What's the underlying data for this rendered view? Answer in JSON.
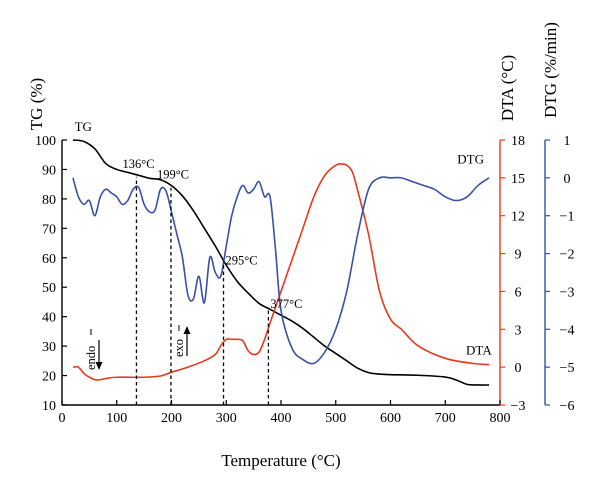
{
  "chart_data": {
    "type": "line",
    "xlabel": "Temperature (°C)",
    "xlim": [
      0,
      800
    ],
    "xticks": [
      0,
      100,
      200,
      300,
      400,
      500,
      600,
      700,
      800
    ],
    "axes": {
      "tg": {
        "label": "TG (%)",
        "range": [
          10,
          100
        ],
        "ticks": [
          10,
          20,
          30,
          40,
          50,
          60,
          70,
          80,
          90,
          100
        ],
        "color": "#000000"
      },
      "dta": {
        "label": "DTA (°C)",
        "range": [
          -3,
          18
        ],
        "ticks": [
          -3,
          0,
          3,
          6,
          9,
          12,
          15,
          18
        ],
        "color": "#e8391f"
      },
      "dtg": {
        "label": "DTG (%/min)",
        "range": [
          -6,
          1
        ],
        "ticks": [
          -6,
          -5,
          -4,
          -3,
          -2,
          -1,
          0,
          1
        ],
        "color": "#3a4fa8"
      }
    },
    "series": [
      {
        "name": "TG",
        "axis": "tg",
        "color": "#000000",
        "x": [
          20,
          40,
          60,
          80,
          100,
          120,
          140,
          160,
          180,
          200,
          220,
          240,
          260,
          280,
          300,
          320,
          340,
          360,
          380,
          400,
          420,
          440,
          460,
          480,
          500,
          520,
          540,
          560,
          580,
          600,
          650,
          700,
          720,
          740,
          760,
          780
        ],
        "y": [
          100,
          99.5,
          97,
          92,
          90,
          89,
          88,
          87,
          86.5,
          84.5,
          81,
          76,
          70,
          64,
          57.5,
          52,
          48,
          44.5,
          42.5,
          40.5,
          38.5,
          36,
          33,
          30,
          27.5,
          25,
          22.5,
          21,
          20.5,
          20.3,
          20.1,
          19.5,
          18.5,
          17,
          16.8,
          16.8
        ]
      },
      {
        "name": "DTA",
        "axis": "dta",
        "color": "#e8391f",
        "x": [
          20,
          30,
          40,
          50,
          60,
          70,
          80,
          100,
          150,
          180,
          200,
          230,
          260,
          280,
          290,
          300,
          310,
          320,
          330,
          340,
          350,
          360,
          370,
          380,
          400,
          420,
          440,
          460,
          480,
          500,
          510,
          520,
          530,
          540,
          560,
          580,
          600,
          620,
          650,
          700,
          750,
          780
        ],
        "y": [
          0,
          0,
          -0.5,
          -0.8,
          -1,
          -1,
          -0.9,
          -0.8,
          -0.8,
          -0.7,
          -0.4,
          0,
          0.5,
          1,
          1.7,
          2.2,
          2.2,
          2.2,
          2.1,
          1.3,
          1,
          1.2,
          2.2,
          3.5,
          6,
          8.5,
          11,
          13.5,
          15.2,
          16,
          16.1,
          16,
          15.5,
          14,
          10.5,
          6,
          3.8,
          3,
          1.7,
          0.7,
          0.3,
          0.2
        ]
      },
      {
        "name": "DTG",
        "axis": "dtg",
        "color": "#3a4fa8",
        "x": [
          20,
          30,
          40,
          50,
          60,
          70,
          80,
          90,
          100,
          110,
          120,
          130,
          140,
          150,
          160,
          170,
          180,
          190,
          200,
          210,
          220,
          230,
          240,
          250,
          260,
          270,
          280,
          290,
          300,
          310,
          320,
          330,
          340,
          350,
          360,
          370,
          380,
          390,
          400,
          420,
          440,
          460,
          480,
          500,
          520,
          540,
          560,
          580,
          600,
          620,
          640,
          660,
          680,
          700,
          720,
          740,
          760,
          780
        ],
        "y": [
          0,
          -0.5,
          -0.7,
          -0.6,
          -1,
          -0.5,
          -0.3,
          -0.4,
          -0.5,
          -0.7,
          -0.6,
          -0.3,
          -0.25,
          -0.7,
          -0.9,
          -0.85,
          -0.3,
          -0.35,
          -0.9,
          -1.5,
          -2.1,
          -3.1,
          -3.2,
          -2.6,
          -3.3,
          -2.1,
          -2.5,
          -2.6,
          -1.8,
          -1.0,
          -0.5,
          -0.2,
          -0.4,
          -0.3,
          -0.1,
          -0.5,
          -0.5,
          -1.9,
          -3.5,
          -4.5,
          -4.8,
          -4.9,
          -4.6,
          -4.0,
          -3.0,
          -1.5,
          -0.3,
          0.0,
          0.0,
          0.0,
          -0.1,
          -0.2,
          -0.3,
          -0.5,
          -0.6,
          -0.5,
          -0.2,
          0.0
        ]
      }
    ],
    "annotations": [
      {
        "x": 136,
        "text": "136°C",
        "axis": "tg",
        "y_top": 87.5,
        "label_y": 90.5
      },
      {
        "x": 199,
        "text": "199°C",
        "axis": "tg",
        "y_top": 83.8,
        "label_y": 87
      },
      {
        "x": 295,
        "text": "295°C",
        "axis": "tg",
        "y_top": 59,
        "label_y": 57.8
      },
      {
        "x": 377,
        "text": "377°C",
        "axis": "tg",
        "y_top": 42.5,
        "label_y": 43
      }
    ],
    "series_labels": [
      {
        "text": "TG",
        "x": 23,
        "axis": "tg",
        "y": 103
      },
      {
        "text": "DTG",
        "x": 722,
        "axis": "tg",
        "y": 92
      },
      {
        "text": "DTA",
        "x": 738,
        "axis": "dta",
        "y": 1.0
      }
    ],
    "indicators": {
      "endo_label": "endo",
      "exo_label": "exo"
    },
    "grid": false,
    "legend": "none"
  }
}
